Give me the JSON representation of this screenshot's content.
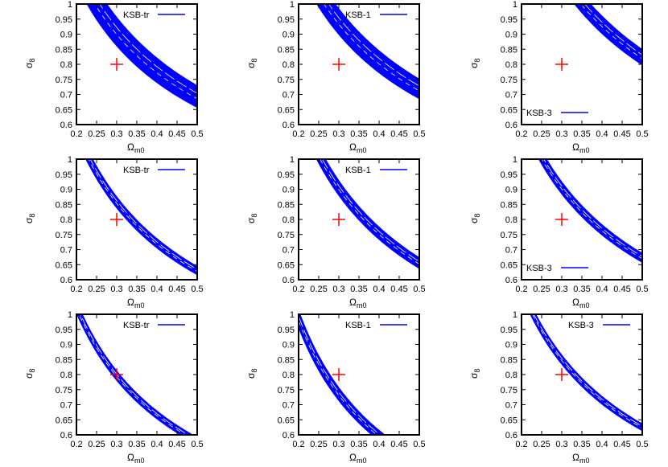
{
  "colors": {
    "band": "#0000ff",
    "marker": "#ff0000",
    "axis": "#000000"
  },
  "shared_axes": {
    "xlabel_main": "Ω",
    "xlabel_sub": "m0",
    "ylabel_main": "σ",
    "ylabel_sub": "8",
    "x_ticks": [
      "0.2",
      "0.25",
      "0.3",
      "0.35",
      "0.4",
      "0.45",
      "0.5"
    ],
    "y_ticks": [
      "0.6",
      "0.65",
      "0.7",
      "0.75",
      "0.8",
      "0.85",
      "0.9",
      "0.95",
      "1"
    ],
    "xlim": [
      0.2,
      0.5
    ],
    "ylim": [
      0.6,
      1.0
    ]
  },
  "chart_data": [
    {
      "type": "area",
      "legend": "KSB-tr",
      "legend_position": "top-right",
      "marker": {
        "x": 0.3,
        "y": 0.8
      },
      "band": {
        "shape": "power-law",
        "lower": {
          "A": 0.455,
          "k": 0.53
        },
        "upper": {
          "A": 0.505,
          "k": 0.53
        }
      },
      "grid": false
    },
    {
      "type": "area",
      "legend": "KSB-1",
      "legend_position": "top-right",
      "marker": {
        "x": 0.3,
        "y": 0.8
      },
      "band": {
        "shape": "power-law",
        "lower": {
          "A": 0.475,
          "k": 0.53
        },
        "upper": {
          "A": 0.52,
          "k": 0.53
        }
      },
      "grid": false
    },
    {
      "type": "area",
      "legend": "KSB-3",
      "legend_position": "bottom-left",
      "marker": {
        "x": 0.3,
        "y": 0.8
      },
      "band": {
        "shape": "power-law",
        "lower": {
          "A": 0.545,
          "k": 0.55
        },
        "upper": {
          "A": 0.58,
          "k": 0.55
        }
      },
      "grid": false
    },
    {
      "type": "area",
      "legend": "KSB-tr",
      "legend_position": "top-right",
      "marker": {
        "x": 0.3,
        "y": 0.8
      },
      "band": {
        "shape": "power-law",
        "lower": {
          "A": 0.407,
          "k": 0.6
        },
        "upper": {
          "A": 0.425,
          "k": 0.6
        }
      },
      "grid": false
    },
    {
      "type": "area",
      "legend": "KSB-1",
      "legend_position": "top-right",
      "marker": {
        "x": 0.3,
        "y": 0.8
      },
      "band": {
        "shape": "power-law",
        "lower": {
          "A": 0.412,
          "k": 0.63
        },
        "upper": {
          "A": 0.435,
          "k": 0.63
        }
      },
      "grid": false
    },
    {
      "type": "area",
      "legend": "KSB-3",
      "legend_position": "bottom-left",
      "marker": {
        "x": 0.3,
        "y": 0.8
      },
      "band": {
        "shape": "power-law",
        "lower": {
          "A": 0.44,
          "k": 0.58
        },
        "upper": {
          "A": 0.46,
          "k": 0.58
        }
      },
      "grid": false
    },
    {
      "type": "area",
      "legend": "KSB-tr",
      "legend_position": "top-right",
      "marker": {
        "x": 0.3,
        "y": 0.8
      },
      "band": {
        "shape": "power-law",
        "lower": {
          "A": 0.37,
          "k": 0.62
        },
        "upper": {
          "A": 0.385,
          "k": 0.62
        }
      },
      "grid": false
    },
    {
      "type": "area",
      "legend": "KSB-1",
      "legend_position": "top-right",
      "marker": {
        "x": 0.3,
        "y": 0.8
      },
      "band": {
        "shape": "power-law",
        "lower": {
          "A": 0.3,
          "k": 0.72
        },
        "upper": {
          "A": 0.318,
          "k": 0.72
        }
      },
      "grid": false
    },
    {
      "type": "area",
      "legend": "KSB-3",
      "legend_position": "top-right",
      "marker": {
        "x": 0.3,
        "y": 0.8
      },
      "band": {
        "shape": "power-law",
        "lower": {
          "A": 0.405,
          "k": 0.6
        },
        "upper": {
          "A": 0.42,
          "k": 0.6
        }
      },
      "grid": false
    }
  ]
}
